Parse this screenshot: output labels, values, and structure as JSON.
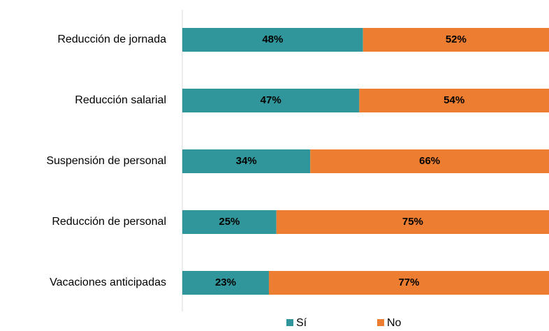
{
  "chart_data": {
    "type": "stacked_barh",
    "categories": [
      "Reducción de jornada",
      "Reducción salarial",
      "Suspensión de personal",
      "Reducción de personal",
      "Vacaciones anticipadas"
    ],
    "series": [
      {
        "name": "Sí",
        "color": "#31969b",
        "values": [
          48,
          47,
          34,
          25,
          23
        ],
        "value_labels": [
          "48%",
          "47%",
          "34%",
          "25%",
          "23%"
        ]
      },
      {
        "name": "No",
        "color": "#ed7d31",
        "values": [
          52,
          54,
          66,
          75,
          77
        ],
        "value_labels": [
          "52%",
          "54%",
          "66%",
          "75%",
          "77%"
        ]
      }
    ],
    "xlim": [
      0,
      100
    ]
  }
}
